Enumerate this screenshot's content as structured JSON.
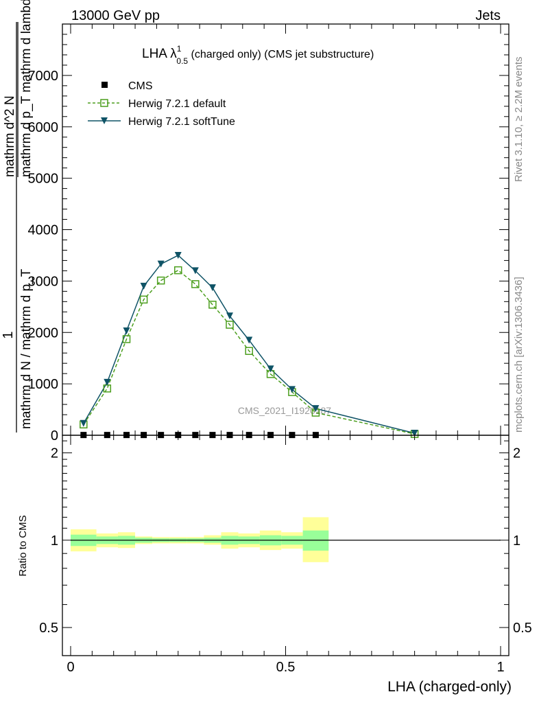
{
  "header": {
    "left": "13000 GeV pp",
    "right": "Jets"
  },
  "side": {
    "rivet": "Rivet 3.1.10, ≥ 2.2M events",
    "mcplots": "mcplots.cern.ch [arXiv:1306.3436]"
  },
  "main": {
    "title_main": "LHA λ",
    "title_sup": "1",
    "title_sub": "0.5",
    "title_rest": " (charged only) (CMS jet substructure)",
    "ylabel_num": "1",
    "ylabel_den": "mathrm d N / mathrm d p_T",
    "ylabel_frac_num": "mathrm d^2 N",
    "ylabel_frac_den": "mathrm d p_T mathrm d lambda",
    "watermark": "CMS_2021_I1920187",
    "legend": {
      "cms": "CMS",
      "default": "Herwig 7.2.1 default",
      "soft": "Herwig 7.2.1 softTune"
    }
  },
  "ratio": {
    "ylabel": "Ratio to CMS",
    "xlabel": "LHA (charged-only)"
  },
  "colors": {
    "default": "#4b9e1d",
    "soft": "#0f5366",
    "band_inner": "#99ff99",
    "band_outer": "#ffff99"
  },
  "chart_data": [
    {
      "type": "line",
      "title": "LHA lambda^1_0.5 (charged only) (CMS jet substructure)",
      "xlim": [
        0,
        1
      ],
      "ylim": [
        0,
        8000
      ],
      "yticks": [
        0,
        1000,
        2000,
        3000,
        4000,
        5000,
        6000,
        7000
      ],
      "yticklabels": [
        "0",
        "1000",
        "2000",
        "3000",
        "4000",
        "5000",
        "6000",
        "7000"
      ],
      "xticks": [
        0,
        0.5,
        1
      ],
      "xticklabels": [
        "0",
        "0.5",
        "1"
      ],
      "series": [
        {
          "name": "CMS",
          "x": [
            0.03,
            0.085,
            0.13,
            0.17,
            0.21,
            0.25,
            0.29,
            0.33,
            0.37,
            0.415,
            0.465,
            0.515,
            0.57
          ],
          "values": [
            5,
            5,
            5,
            5,
            5,
            5,
            5,
            5,
            5,
            5,
            5,
            5,
            5
          ]
        },
        {
          "name": "Herwig 7.2.1 default",
          "x": [
            0.03,
            0.085,
            0.13,
            0.17,
            0.21,
            0.25,
            0.29,
            0.33,
            0.37,
            0.415,
            0.465,
            0.515,
            0.57,
            0.8
          ],
          "values": [
            210,
            910,
            1870,
            2640,
            3010,
            3210,
            2940,
            2540,
            2150,
            1640,
            1190,
            840,
            440,
            25
          ]
        },
        {
          "name": "Herwig 7.2.1 softTune",
          "x": [
            0.03,
            0.085,
            0.13,
            0.17,
            0.21,
            0.25,
            0.29,
            0.33,
            0.37,
            0.415,
            0.465,
            0.515,
            0.57,
            0.8
          ],
          "values": [
            230,
            1030,
            2030,
            2900,
            3330,
            3500,
            3200,
            2870,
            2320,
            1850,
            1290,
            890,
            520,
            40
          ]
        }
      ]
    },
    {
      "type": "area",
      "title": "Ratio to CMS",
      "xlim": [
        0,
        1
      ],
      "ylim": [
        0.4,
        2.3
      ],
      "yscale": "log",
      "yticks": [
        0.5,
        1,
        2
      ],
      "yticklabels": [
        "0.5",
        "1",
        "2"
      ],
      "bins": [
        0.0,
        0.06,
        0.11,
        0.15,
        0.19,
        0.23,
        0.27,
        0.31,
        0.35,
        0.39,
        0.44,
        0.49,
        0.54,
        0.6,
        1.0
      ],
      "inner_low": [
        0.955,
        0.97,
        0.965,
        0.98,
        0.985,
        0.985,
        0.985,
        0.98,
        0.965,
        0.97,
        0.96,
        0.965,
        0.92
      ],
      "inner_high": [
        1.045,
        1.03,
        1.035,
        1.02,
        1.015,
        1.015,
        1.015,
        1.02,
        1.035,
        1.03,
        1.04,
        1.035,
        1.08
      ],
      "outer_low": [
        0.915,
        0.945,
        0.94,
        0.97,
        0.975,
        0.975,
        0.975,
        0.965,
        0.935,
        0.945,
        0.925,
        0.935,
        0.84
      ],
      "outer_high": [
        1.09,
        1.055,
        1.065,
        1.03,
        1.025,
        1.025,
        1.025,
        1.04,
        1.065,
        1.055,
        1.08,
        1.065,
        1.2
      ],
      "reference": 1
    }
  ]
}
